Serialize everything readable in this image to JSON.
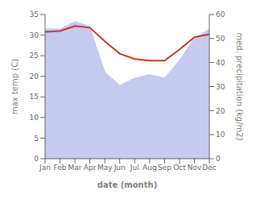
{
  "chart_data": {
    "type": "line",
    "categories": [
      "Jan",
      "Feb",
      "Mar",
      "Apr",
      "May",
      "Jun",
      "Jul",
      "Aug",
      "Sep",
      "Oct",
      "Nov",
      "Dec"
    ],
    "series": [
      {
        "type": "area",
        "axis": "y2",
        "color": "#c5caee",
        "values": [
          54.0,
          54.0,
          57.0,
          55.0,
          36.0,
          30.5,
          33.5,
          35.0,
          33.5,
          41.0,
          50.0,
          54.0
        ]
      },
      {
        "type": "line",
        "color": "#c0392b",
        "values": [
          30.8,
          31.0,
          32.2,
          31.8,
          28.5,
          25.5,
          24.2,
          23.8,
          23.8,
          26.5,
          29.5,
          30.2
        ]
      }
    ],
    "xlabel": "date (month)",
    "ylabel": "max temp (C)",
    "y2label": "med. precipitation (kg/m2)",
    "ylim": [
      0,
      35
    ],
    "yticks": [
      0,
      5,
      10,
      15,
      20,
      25,
      30,
      35
    ],
    "y2lim": [
      0,
      60
    ],
    "y2ticks": [
      0,
      10,
      20,
      30,
      40,
      50,
      60
    ],
    "grid": false
  }
}
